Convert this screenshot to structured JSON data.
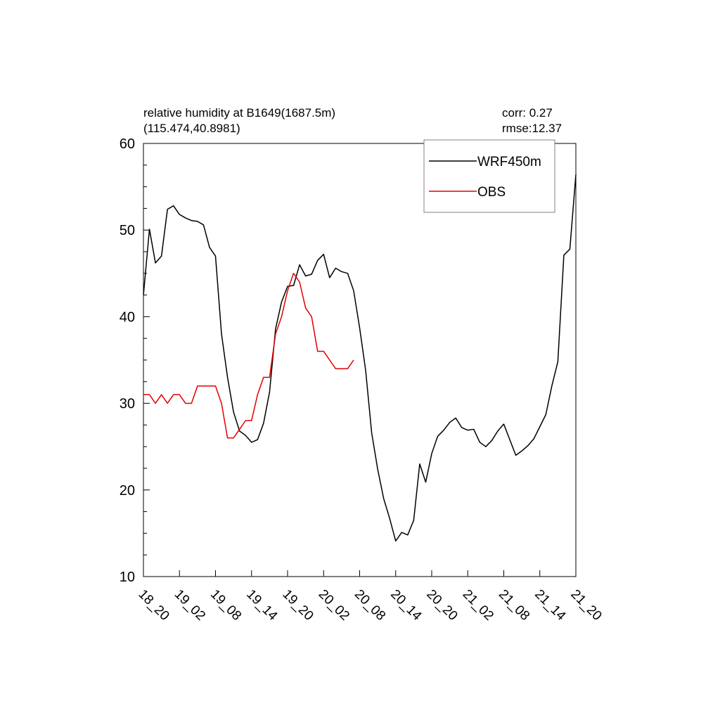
{
  "chart_data": {
    "type": "line",
    "title": "relative humidity at B1649(1687.5m)",
    "subtitle": "(115.474,40.8981)",
    "stats": {
      "corr": "corr:  0.27",
      "rmse": "rmse:12.37"
    },
    "xlabel": "",
    "ylabel": "",
    "ylim": [
      10,
      60
    ],
    "yticks": [
      10,
      20,
      30,
      40,
      50,
      60
    ],
    "xlim": [
      0,
      72
    ],
    "xticks": [
      {
        "x": 0,
        "label": "18_20"
      },
      {
        "x": 6,
        "label": "19_02"
      },
      {
        "x": 12,
        "label": "19_08"
      },
      {
        "x": 18,
        "label": "19_14"
      },
      {
        "x": 24,
        "label": "19_20"
      },
      {
        "x": 30,
        "label": "20_02"
      },
      {
        "x": 36,
        "label": "20_08"
      },
      {
        "x": 42,
        "label": "20_14"
      },
      {
        "x": 48,
        "label": "20_20"
      },
      {
        "x": 54,
        "label": "21_02"
      },
      {
        "x": 60,
        "label": "21_08"
      },
      {
        "x": 66,
        "label": "21_14"
      },
      {
        "x": 72,
        "label": "21_20"
      }
    ],
    "legend_position": "top-right",
    "grid": false,
    "series": [
      {
        "name": "WRF450m",
        "color": "#000000",
        "values": [
          42.5,
          50.1,
          46.2,
          47.0,
          52.4,
          52.8,
          51.8,
          51.4,
          51.1,
          51.0,
          50.6,
          48.0,
          47.0,
          38.0,
          33.0,
          29.0,
          26.8,
          26.3,
          25.5,
          25.8,
          27.7,
          31.3,
          38.6,
          41.7,
          43.5,
          43.6,
          46.0,
          44.7,
          44.9,
          46.5,
          47.2,
          44.5,
          45.6,
          45.2,
          45.0,
          43.0,
          38.7,
          33.8,
          26.6,
          22.4,
          19.0,
          16.7,
          14.1,
          15.1,
          14.8,
          16.5,
          23.0,
          20.9,
          24.2,
          26.2,
          26.9,
          27.8,
          28.3,
          27.2,
          26.9,
          27.0,
          25.5,
          25.0,
          25.7,
          26.8,
          27.6,
          25.8,
          24.0,
          24.5,
          25.1,
          25.9,
          27.3,
          28.7,
          32.0,
          34.8,
          47.1,
          47.8,
          56.4
        ]
      },
      {
        "name": "OBS",
        "color": "#e00000",
        "values": [
          31,
          31,
          30,
          31,
          30,
          31,
          31,
          30,
          30,
          32,
          32,
          32,
          32,
          30,
          26,
          26,
          27,
          28,
          28,
          31,
          33,
          33,
          38,
          40,
          43,
          45,
          44,
          41,
          40,
          36,
          36,
          35,
          34,
          34,
          34,
          35
        ]
      }
    ]
  }
}
